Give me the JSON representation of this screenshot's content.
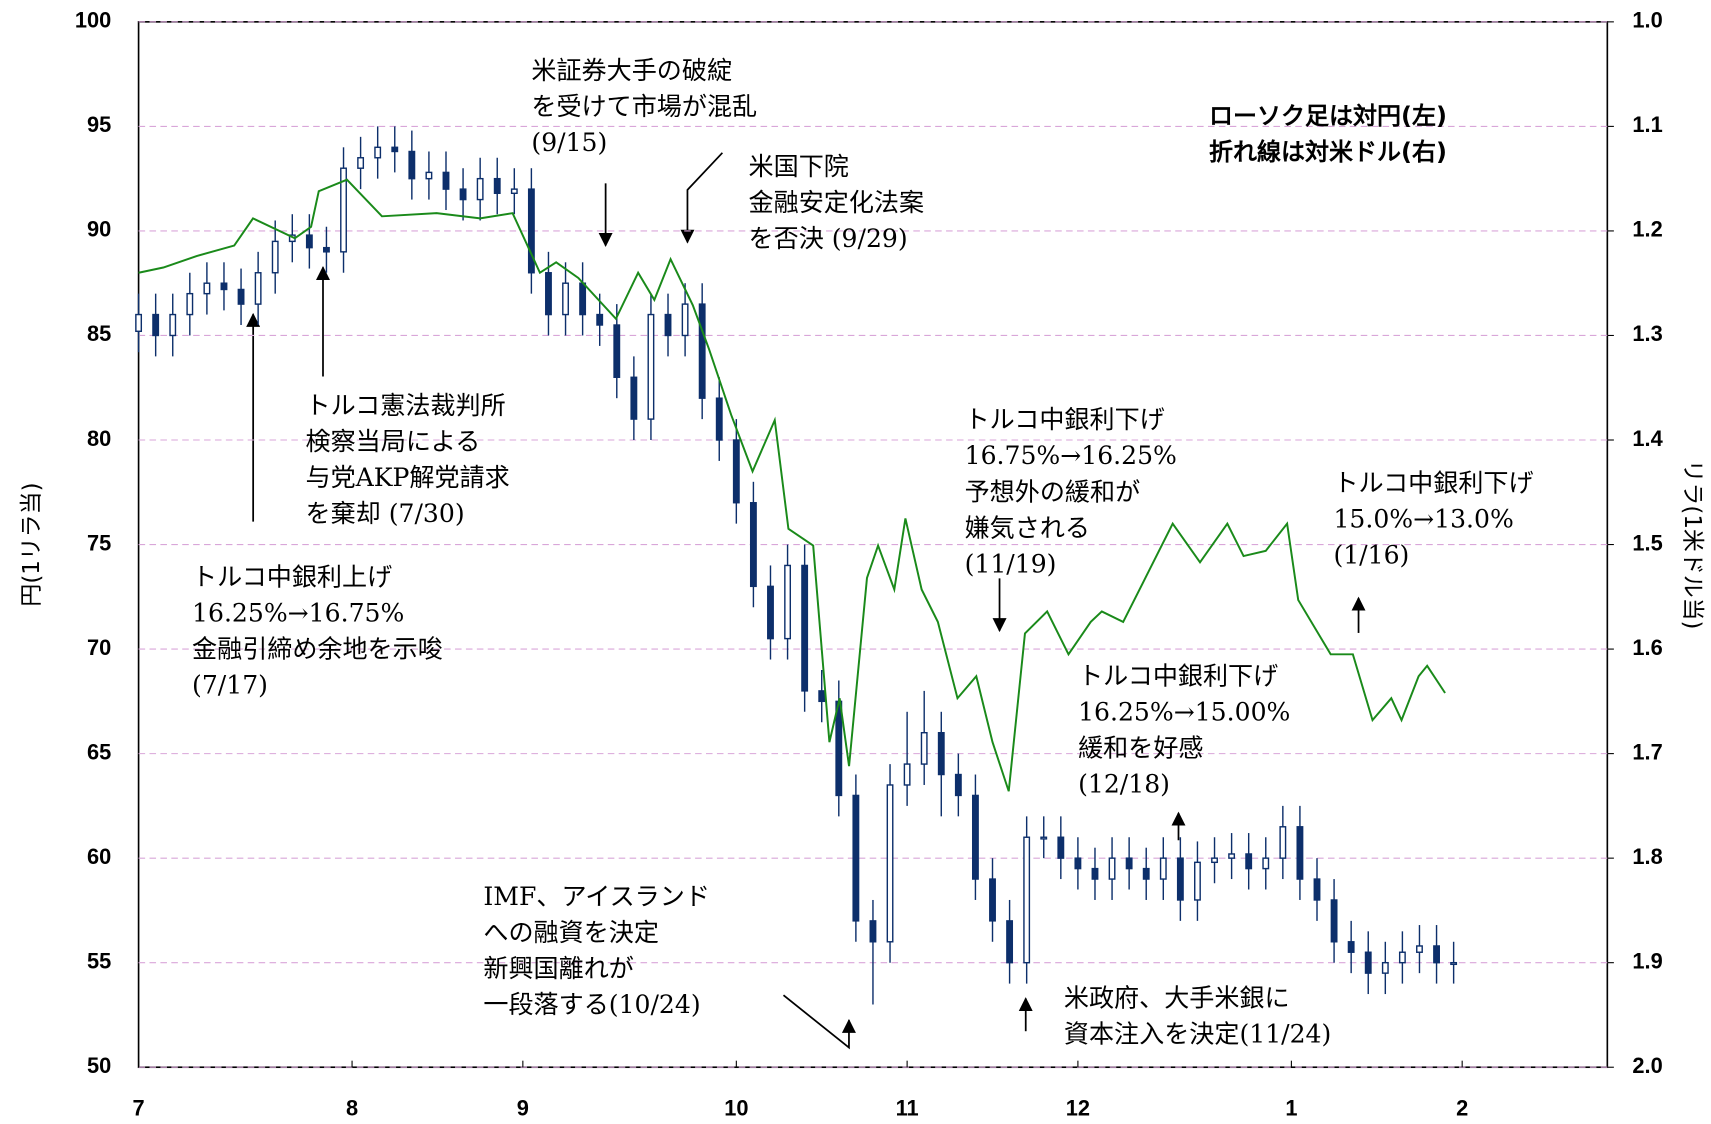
{
  "chart_data": {
    "type": "candlestick",
    "ylabel": "円(1リラ当)",
    "y2label": "リラ(1米ドル当)",
    "xlim": [
      0,
      172
    ],
    "xticks": [
      {
        "value": 0,
        "label": "7"
      },
      {
        "value": 25,
        "label": "8"
      },
      {
        "value": 45,
        "label": "9"
      },
      {
        "value": 70,
        "label": "10"
      },
      {
        "value": 90,
        "label": "11"
      },
      {
        "value": 110,
        "label": "12"
      },
      {
        "value": 135,
        "label": "1"
      },
      {
        "value": 155,
        "label": "2"
      }
    ],
    "ylim": [
      50,
      100
    ],
    "yticks": [
      50,
      55,
      60,
      65,
      70,
      75,
      80,
      85,
      90,
      95,
      100
    ],
    "y2lim": [
      1.0,
      2.0
    ],
    "y2_inverted": true,
    "y2ticks": [
      {
        "value": 1.0,
        "label": "1.0"
      },
      1.1,
      1.2,
      1.3,
      1.4,
      1.5,
      1.6,
      1.7,
      1.8,
      1.9,
      {
        "value": 2.0,
        "label": "2.0"
      }
    ],
    "grid": true,
    "grid_color": "#d9a6d9",
    "candles": {
      "name": "対円",
      "color": "#0d2f6b",
      "x": [
        0,
        2,
        4,
        6,
        8,
        10,
        12,
        14,
        16,
        18,
        20,
        22,
        24,
        26,
        28,
        30,
        32,
        34,
        36,
        38,
        40,
        42,
        44,
        46,
        48,
        50,
        52,
        54,
        56,
        58,
        60,
        62,
        64,
        66,
        68,
        70,
        72,
        74,
        76,
        78,
        80,
        82,
        84,
        86,
        88,
        90,
        92,
        94,
        96,
        98,
        100,
        102,
        104,
        106,
        108,
        110,
        112,
        114,
        116,
        118,
        120,
        122,
        124,
        126,
        128,
        130,
        132,
        134,
        136,
        138,
        140,
        142,
        144,
        146,
        148,
        150,
        152,
        154
      ],
      "open": [
        85.2,
        86,
        85,
        86,
        87,
        87.5,
        87.2,
        86.5,
        88,
        89.5,
        89.8,
        89.2,
        89,
        93,
        93.5,
        94,
        93.8,
        92.5,
        92.8,
        92,
        91.5,
        92.5,
        91.8,
        92,
        88,
        86,
        87.5,
        86,
        85.5,
        83,
        81,
        86,
        85,
        86.5,
        82,
        80,
        77,
        73,
        70.5,
        74,
        68,
        67.5,
        63,
        57,
        56,
        63.5,
        64.5,
        66,
        64,
        63,
        59,
        57,
        55,
        61,
        61,
        60,
        59.5,
        59,
        60,
        59.5,
        59,
        60,
        58,
        59.8,
        60,
        60.2,
        59.5,
        60,
        61.5,
        59,
        58,
        56,
        55.5,
        54.5,
        55,
        55.5,
        55.8,
        55
      ],
      "high": [
        87,
        87,
        87,
        88,
        88.5,
        88.5,
        88.2,
        89,
        90.5,
        90.8,
        90.8,
        90.2,
        94,
        94.5,
        95,
        95,
        94.8,
        93.8,
        93.8,
        93,
        93.5,
        93.5,
        93,
        93,
        89,
        88.5,
        88.5,
        87,
        86.5,
        84,
        87,
        87,
        87.5,
        87.5,
        83,
        81,
        78,
        74,
        75,
        75,
        69,
        68.5,
        64,
        58,
        64.5,
        67,
        68,
        67,
        65,
        64,
        60,
        58,
        62,
        62,
        62,
        61,
        60.5,
        61,
        61,
        60.5,
        61,
        61,
        60.8,
        61,
        61.2,
        61.2,
        61,
        62.5,
        62.5,
        60,
        59,
        57,
        56.5,
        56,
        56.5,
        56.8,
        56.8,
        56
      ],
      "low": [
        84.2,
        84,
        84,
        85,
        86,
        86.2,
        85.5,
        85.5,
        87,
        88.5,
        88.2,
        88,
        88,
        92,
        92.5,
        92.8,
        91.5,
        91.5,
        91,
        90.5,
        90.5,
        90.8,
        90.8,
        87,
        85,
        85,
        85,
        84.5,
        82,
        80,
        80,
        84,
        84,
        81,
        79,
        76,
        72,
        69.5,
        69.5,
        67,
        66.5,
        62,
        56,
        53,
        55,
        62.5,
        63.5,
        62,
        62,
        58,
        56,
        54,
        54,
        60,
        59,
        58.5,
        58,
        58,
        58.5,
        58,
        58,
        57,
        57,
        58.8,
        59,
        58.5,
        58.5,
        59,
        58,
        57,
        55,
        54.5,
        53.5,
        53.5,
        54,
        54.5,
        54,
        54
      ],
      "close": [
        86,
        85,
        86,
        87,
        87.5,
        87.2,
        86.5,
        88,
        89.5,
        89.8,
        89.2,
        89,
        93,
        93.5,
        94,
        93.8,
        92.5,
        92.8,
        92,
        91.5,
        92.5,
        91.8,
        92,
        88,
        86,
        87.5,
        86,
        85.5,
        83,
        81,
        86,
        85,
        86.5,
        82,
        80,
        77,
        73,
        70.5,
        74,
        68,
        67.5,
        63,
        57,
        56,
        63.5,
        64.5,
        66,
        64,
        63,
        59,
        57,
        55,
        61,
        61,
        60,
        59.5,
        59,
        60,
        59.5,
        59,
        60,
        58,
        59.8,
        60,
        60.2,
        59.5,
        60,
        61.5,
        59,
        58,
        56,
        55.5,
        54.5,
        55,
        55.5,
        55.8,
        55,
        55
      ]
    },
    "series": [
      {
        "name": "対米ドル",
        "color": "#1a8a1a",
        "axis": "y2",
        "x": [
          0,
          2.9,
          6.8,
          11.2,
          13.4,
          18.3,
          20.2,
          21.1,
          24.4,
          28.5,
          34.9,
          40,
          43.8,
          47,
          48.9,
          51.5,
          55.9,
          58.5,
          60.4,
          62.3,
          64.9,
          66.8,
          69.4,
          71.9,
          74.5,
          76.1,
          79,
          80.9,
          82.1,
          83.2,
          85.3,
          86.6,
          88.5,
          89.8,
          91.7,
          93.6,
          95.9,
          98.1,
          100,
          101.9,
          103.8,
          106.4,
          108.9,
          111.5,
          112.8,
          115.3,
          117.9,
          121.1,
          124.3,
          127.5,
          129.4,
          132,
          134.5,
          135.8,
          139.6,
          142.2,
          144.5,
          146.7,
          147.9,
          149.9,
          150.9,
          153
        ],
        "values": [
          1.24,
          1.235,
          1.224,
          1.214,
          1.188,
          1.207,
          1.196,
          1.162,
          1.151,
          1.186,
          1.183,
          1.188,
          1.183,
          1.24,
          1.23,
          1.245,
          1.284,
          1.24,
          1.266,
          1.227,
          1.271,
          1.313,
          1.376,
          1.43,
          1.381,
          1.485,
          1.501,
          1.689,
          1.647,
          1.712,
          1.532,
          1.501,
          1.543,
          1.475,
          1.543,
          1.574,
          1.647,
          1.626,
          1.689,
          1.736,
          1.585,
          1.564,
          1.605,
          1.574,
          1.564,
          1.574,
          1.532,
          1.48,
          1.517,
          1.48,
          1.511,
          1.506,
          1.48,
          1.553,
          1.605,
          1.605,
          1.668,
          1.647,
          1.668,
          1.626,
          1.616,
          1.642
        ]
      }
    ],
    "note": [
      "ローソク足は対円(左)",
      "折れ線は対米ドル(右)"
    ],
    "annotations": [
      [
        "トルコ中銀利上げ",
        "16.25%→16.75%",
        "金融引締め余地を示唆",
        "(7/17)"
      ],
      [
        "トルコ憲法裁判所",
        "検察当局による",
        "与党AKP解党請求",
        "を棄却 (7/30)"
      ],
      [
        "米証券大手の破綻",
        "を受けて市場が混乱",
        "(9/15)"
      ],
      [
        "米国下院",
        "金融安定化法案",
        "を否決 (9/29)"
      ],
      [
        "トルコ中銀利下げ",
        "16.75%→16.25%",
        "予想外の緩和が",
        "嫌気される",
        "(11/19)"
      ],
      [
        "トルコ中銀利下げ",
        "15.0%→13.0%",
        "(1/16)"
      ],
      [
        "トルコ中銀利下げ",
        "16.25%→15.00%",
        "緩和を好感",
        "(12/18)"
      ],
      [
        "IMF、アイスランド",
        "への融資を決定",
        "新興国離れが",
        "一段落する(10/24)"
      ],
      [
        "米政府、大手米銀に",
        "資本注入を決定(11/24)"
      ]
    ]
  }
}
